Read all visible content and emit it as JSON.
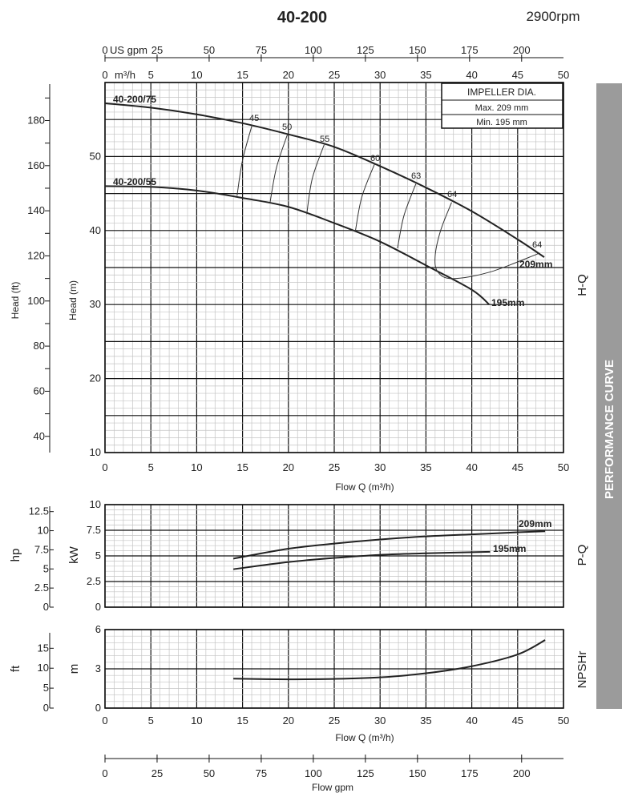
{
  "header": {
    "title": "40-200",
    "speed": "2900rpm"
  },
  "side_band": {
    "label": "PERFORMANCE CURVE",
    "color": "#9b9b9b"
  },
  "panel_labels": {
    "hq": "H-Q",
    "pq": "P-Q",
    "npsh": "NPSHr"
  },
  "impeller_box": {
    "title": "IMPELLER DIA.",
    "max": "Max.  209  mm",
    "min": "Min.   195  mm"
  },
  "chart_data": [
    {
      "type": "line",
      "title": "H-Q",
      "xlabel": "Flow Q (m³/h)",
      "ylabel": "Head (m)",
      "ylabel2": "Head (ft)",
      "xlim": [
        0,
        50
      ],
      "ylim": [
        10,
        60
      ],
      "x_ticks": [
        0,
        5,
        10,
        15,
        20,
        25,
        30,
        35,
        40,
        45,
        50
      ],
      "y_ticks": [
        10,
        20,
        30,
        40,
        50
      ],
      "y2_ticks": [
        40,
        60,
        80,
        100,
        120,
        140,
        160,
        180
      ],
      "top_axis_gpm": {
        "unit": "US gpm",
        "ticks": [
          0,
          25,
          50,
          75,
          100,
          125,
          150,
          175,
          200
        ]
      },
      "top_axis_m3h": {
        "unit": "m³/h",
        "ticks": [
          0,
          5,
          10,
          15,
          20,
          25,
          30,
          35,
          40,
          45,
          50
        ]
      },
      "grid": true,
      "series": [
        {
          "name": "209mm",
          "model": "40-200/75",
          "points": [
            [
              0,
              57.2
            ],
            [
              5,
              56.6
            ],
            [
              10,
              55.7
            ],
            [
              15,
              54.5
            ],
            [
              20,
              53.0
            ],
            [
              25,
              51.3
            ],
            [
              30,
              48.7
            ],
            [
              35,
              45.8
            ],
            [
              40,
              42.6
            ],
            [
              45,
              38.8
            ],
            [
              47.9,
              36.4
            ]
          ]
        },
        {
          "name": "195mm",
          "model": "40-200/55",
          "points": [
            [
              0,
              46.0
            ],
            [
              5,
              45.9
            ],
            [
              10,
              45.4
            ],
            [
              15,
              44.4
            ],
            [
              20,
              43.2
            ],
            [
              25,
              41.0
            ],
            [
              30,
              38.5
            ],
            [
              35,
              35.3
            ],
            [
              40,
              32.0
            ],
            [
              41.9,
              30.0
            ]
          ]
        }
      ],
      "efficiency_lines": [
        {
          "label": "45",
          "points": [
            [
              16.05,
              54.3
            ],
            [
              15.0,
              49.5
            ],
            [
              14.4,
              44.7
            ]
          ]
        },
        {
          "label": "50",
          "points": [
            [
              19.9,
              53.0
            ],
            [
              18.7,
              48.5
            ],
            [
              18.0,
              43.8
            ]
          ]
        },
        {
          "label": "55",
          "points": [
            [
              23.9,
              51.6
            ],
            [
              22.6,
              47.0
            ],
            [
              22.0,
              42.2
            ]
          ]
        },
        {
          "label": "60",
          "points": [
            [
              29.4,
              49.0
            ],
            [
              28.0,
              44.5
            ],
            [
              27.3,
              39.9
            ]
          ]
        },
        {
          "label": "63",
          "points": [
            [
              33.9,
              46.3
            ],
            [
              32.6,
              42.0
            ],
            [
              31.9,
              37.6
            ]
          ]
        },
        {
          "label": "64",
          "points": [
            [
              37.8,
              43.8
            ],
            [
              36.6,
              40.0
            ],
            [
              36.0,
              36.5
            ],
            [
              36.3,
              34.4
            ],
            [
              37.9,
              33.5
            ],
            [
              42.0,
              34.4
            ],
            [
              47.3,
              36.9
            ]
          ]
        }
      ],
      "efficiency_extra_label": "64"
    },
    {
      "type": "line",
      "title": "P-Q",
      "xlabel": "",
      "ylabel": "kW",
      "ylabel2": "hp",
      "xlim": [
        0,
        50
      ],
      "ylim": [
        0,
        10
      ],
      "y_ticks": [
        "0",
        "2.5",
        "5",
        "7.5",
        "10"
      ],
      "y2_ticks": [
        "0",
        "2.5",
        "5",
        "7.5",
        "10",
        "12.5"
      ],
      "grid": true,
      "series": [
        {
          "name": "209mm",
          "points": [
            [
              14,
              4.73
            ],
            [
              20,
              5.7
            ],
            [
              25,
              6.2
            ],
            [
              30,
              6.6
            ],
            [
              35,
              6.9
            ],
            [
              40,
              7.1
            ],
            [
              45,
              7.3
            ],
            [
              48,
              7.4
            ]
          ]
        },
        {
          "name": "195mm",
          "points": [
            [
              14,
              3.7
            ],
            [
              20,
              4.4
            ],
            [
              25,
              4.8
            ],
            [
              30,
              5.1
            ],
            [
              35,
              5.25
            ],
            [
              42,
              5.4
            ]
          ]
        }
      ]
    },
    {
      "type": "line",
      "title": "NPSHr",
      "xlabel": "Flow Q (m³/h)",
      "ylabel": "m",
      "ylabel2": "ft",
      "xlim": [
        0,
        50
      ],
      "ylim": [
        0,
        6
      ],
      "x_ticks": [
        0,
        5,
        10,
        15,
        20,
        25,
        30,
        35,
        40,
        45,
        50
      ],
      "y_ticks": [
        0,
        3,
        6
      ],
      "y2_ticks": [
        0,
        5,
        10,
        15
      ],
      "bottom_axis_gpm": {
        "label": "Flow gpm",
        "ticks": [
          0,
          25,
          50,
          75,
          100,
          125,
          150,
          175,
          200
        ]
      },
      "grid": true,
      "series": [
        {
          "name": "NPSHr",
          "points": [
            [
              14,
              2.25
            ],
            [
              20,
              2.2
            ],
            [
              25,
              2.23
            ],
            [
              30,
              2.35
            ],
            [
              35,
              2.66
            ],
            [
              40,
              3.2
            ],
            [
              45,
              4.1
            ],
            [
              48,
              5.2
            ]
          ]
        }
      ]
    }
  ]
}
